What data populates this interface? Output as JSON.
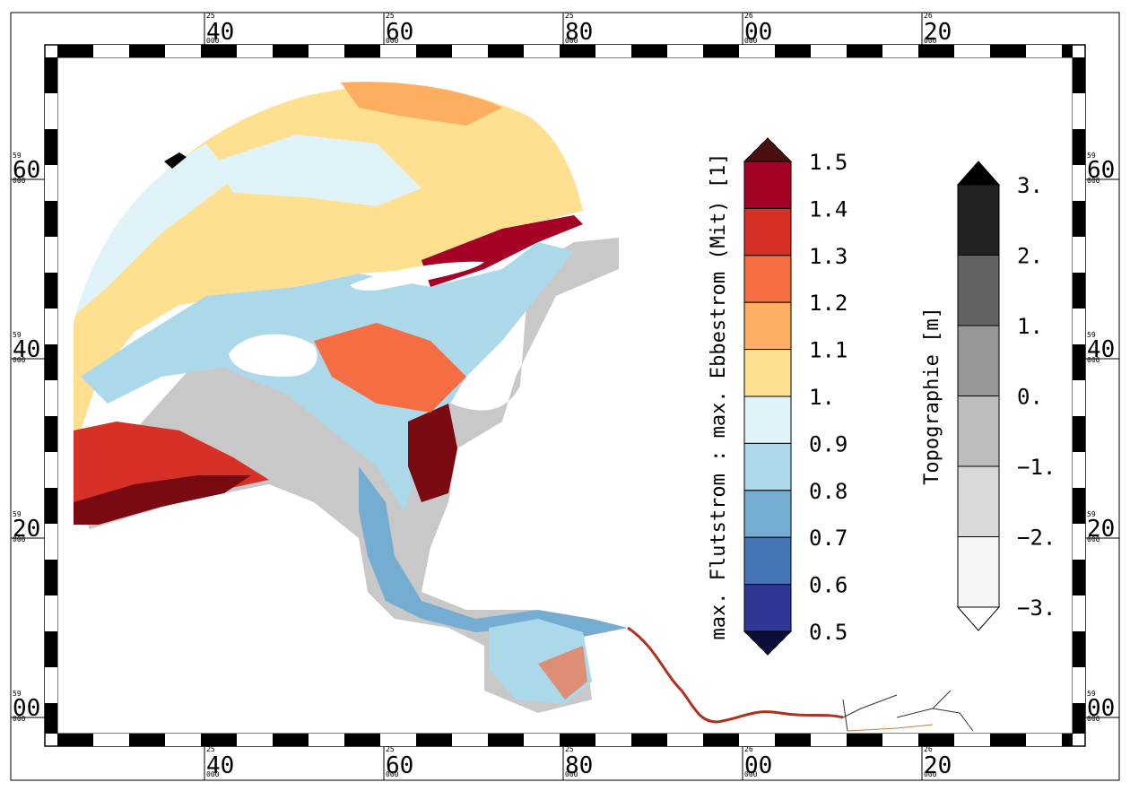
{
  "map": {
    "x_ticks": [
      {
        "sup": "25",
        "main": "40"
      },
      {
        "sup": "25",
        "main": "60"
      },
      {
        "sup": "25",
        "main": "80"
      },
      {
        "sup": "26",
        "main": "00"
      },
      {
        "sup": "26",
        "main": "20"
      }
    ],
    "y_ticks": [
      {
        "sup": "59",
        "main": "60"
      },
      {
        "sup": "59",
        "main": "40"
      },
      {
        "sup": "59",
        "main": "20"
      },
      {
        "sup": "59",
        "main": "00"
      }
    ],
    "tick_sub": "000"
  },
  "colorbar_ratio": {
    "title": "max. Flutstrom : max. Ebbestrom (Mit) [1]",
    "labels": [
      "1.5",
      "1.4",
      "1.3",
      "1.2",
      "1.1",
      "1.",
      "0.9",
      "0.8",
      "0.7",
      "0.6",
      "0.5"
    ],
    "colors": [
      "#a50026",
      "#d73027",
      "#f46d43",
      "#fdae61",
      "#fee090",
      "#e0f3f8",
      "#abd9e9",
      "#74add1",
      "#4575b4",
      "#313695"
    ],
    "over_color": "#4a0f0f",
    "under_color": "#0d0d3a"
  },
  "colorbar_topo": {
    "title": "Topographie [m]",
    "labels": [
      "3.",
      "2.",
      "1.",
      "0.",
      "−1.",
      "−2.",
      "−3."
    ],
    "colors": [
      "#222222",
      "#636363",
      "#969696",
      "#bdbdbd",
      "#d9d9d9",
      "#f5f5f5"
    ],
    "over_color": "#000000",
    "under_color": "#ffffff"
  }
}
